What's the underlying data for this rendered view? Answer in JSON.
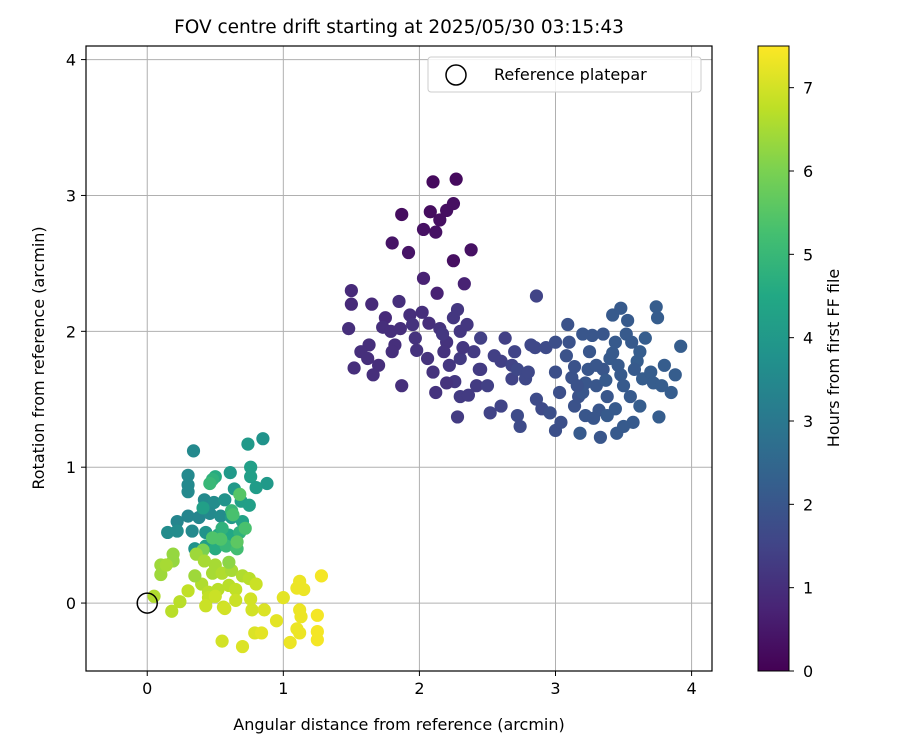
{
  "chart_data": {
    "type": "scatter",
    "title": "FOV centre drift starting at 2025/05/30 03:15:43",
    "xlabel": "Angular distance from reference (arcmin)",
    "ylabel": "Rotation from reference (arcmin)",
    "xlim": [
      -0.45,
      4.15
    ],
    "ylim": [
      -0.5,
      4.1
    ],
    "xticks": [
      0,
      1,
      2,
      3,
      4
    ],
    "yticks": [
      0,
      1,
      2,
      3,
      4
    ],
    "grid": true,
    "legend": {
      "placement": "top-right",
      "entries": [
        "Reference platepar"
      ]
    },
    "reference_point": {
      "label": "Reference platepar",
      "x": 0,
      "y": 0
    },
    "colorbar": {
      "label": "Hours from first FF file",
      "colormap": "viridis",
      "range": [
        0,
        7.5
      ],
      "ticks": [
        0,
        1,
        2,
        3,
        4,
        5,
        6,
        7
      ]
    },
    "points": [
      [
        2.1,
        3.1,
        0.2
      ],
      [
        2.27,
        3.12,
        0.2
      ],
      [
        2.08,
        2.88,
        0.25
      ],
      [
        2.2,
        2.89,
        0.3
      ],
      [
        2.25,
        2.94,
        0.3
      ],
      [
        2.15,
        2.82,
        0.3
      ],
      [
        1.87,
        2.86,
        0.25
      ],
      [
        2.03,
        2.75,
        0.35
      ],
      [
        2.12,
        2.73,
        0.35
      ],
      [
        1.8,
        2.65,
        0.4
      ],
      [
        1.92,
        2.58,
        0.4
      ],
      [
        2.25,
        2.52,
        0.3
      ],
      [
        2.38,
        2.6,
        0.35
      ],
      [
        2.03,
        2.39,
        0.7
      ],
      [
        2.13,
        2.28,
        0.7
      ],
      [
        2.33,
        2.35,
        0.7
      ],
      [
        1.5,
        2.3,
        0.9
      ],
      [
        1.5,
        2.2,
        0.9
      ],
      [
        1.65,
        2.2,
        0.9
      ],
      [
        1.75,
        2.1,
        0.9
      ],
      [
        1.85,
        2.22,
        1.0
      ],
      [
        1.73,
        2.03,
        1.0
      ],
      [
        1.93,
        2.12,
        1.0
      ],
      [
        2.02,
        2.14,
        1.0
      ],
      [
        2.07,
        2.06,
        1.0
      ],
      [
        1.48,
        2.02,
        1.0
      ],
      [
        1.63,
        1.9,
        1.0
      ],
      [
        1.57,
        1.85,
        1.0
      ],
      [
        1.62,
        1.8,
        1.0
      ],
      [
        1.7,
        1.75,
        1.0
      ],
      [
        1.66,
        1.68,
        1.0
      ],
      [
        1.52,
        1.73,
        1.0
      ],
      [
        1.82,
        1.9,
        1.0
      ],
      [
        1.79,
        2.0,
        1.0
      ],
      [
        1.95,
        2.05,
        1.1
      ],
      [
        1.87,
        1.6,
        1.0
      ],
      [
        1.98,
        1.86,
        1.1
      ],
      [
        2.06,
        1.8,
        1.1
      ],
      [
        2.12,
        1.55,
        1.1
      ],
      [
        2.1,
        1.7,
        1.1
      ],
      [
        2.2,
        1.92,
        1.1
      ],
      [
        2.25,
        2.1,
        1.2
      ],
      [
        2.28,
        2.16,
        1.2
      ],
      [
        2.3,
        2.0,
        1.2
      ],
      [
        2.35,
        2.05,
        1.2
      ],
      [
        2.22,
        1.75,
        1.2
      ],
      [
        2.15,
        2.02,
        1.1
      ],
      [
        2.17,
        1.98,
        1.2
      ],
      [
        2.26,
        1.63,
        1.2
      ],
      [
        2.3,
        1.52,
        1.3
      ],
      [
        2.28,
        1.37,
        1.3
      ],
      [
        2.36,
        1.53,
        1.3
      ],
      [
        2.42,
        1.6,
        1.3
      ],
      [
        2.45,
        1.72,
        1.3
      ],
      [
        2.3,
        1.8,
        1.3
      ],
      [
        2.4,
        1.85,
        1.3
      ],
      [
        2.45,
        1.95,
        1.4
      ],
      [
        2.55,
        1.82,
        1.4
      ],
      [
        2.6,
        1.78,
        1.4
      ],
      [
        2.63,
        1.95,
        1.4
      ],
      [
        2.68,
        1.75,
        1.5
      ],
      [
        2.7,
        1.85,
        1.5
      ],
      [
        2.52,
        1.4,
        1.5
      ],
      [
        2.6,
        1.45,
        1.5
      ],
      [
        2.68,
        1.65,
        1.5
      ],
      [
        2.72,
        1.72,
        1.6
      ],
      [
        2.78,
        1.65,
        1.6
      ],
      [
        2.8,
        1.7,
        1.6
      ],
      [
        2.82,
        1.9,
        1.6
      ],
      [
        2.85,
        1.88,
        1.6
      ],
      [
        2.72,
        1.38,
        1.7
      ],
      [
        2.74,
        1.3,
        1.7
      ],
      [
        2.86,
        1.5,
        1.7
      ],
      [
        2.9,
        1.43,
        1.7
      ],
      [
        2.93,
        1.88,
        1.7
      ],
      [
        2.96,
        1.4,
        1.8
      ],
      [
        2.86,
        2.26,
        1.5
      ],
      [
        3.0,
        1.92,
        1.8
      ],
      [
        3.0,
        1.7,
        1.8
      ],
      [
        3.0,
        1.27,
        1.8
      ],
      [
        3.04,
        1.33,
        1.8
      ],
      [
        3.08,
        1.82,
        1.9
      ],
      [
        3.09,
        2.05,
        1.9
      ],
      [
        3.12,
        1.66,
        1.9
      ],
      [
        3.14,
        1.45,
        1.9
      ],
      [
        3.17,
        1.52,
        1.9
      ],
      [
        3.2,
        1.55,
        2.0
      ],
      [
        3.22,
        1.62,
        2.0
      ],
      [
        3.24,
        1.72,
        2.0
      ],
      [
        3.25,
        1.85,
        2.0
      ],
      [
        3.27,
        1.97,
        2.0
      ],
      [
        3.3,
        1.6,
        2.0
      ],
      [
        3.32,
        1.42,
        2.0
      ],
      [
        3.33,
        1.22,
        2.0
      ],
      [
        3.35,
        1.72,
        2.0
      ],
      [
        3.37,
        1.64,
        2.1
      ],
      [
        3.4,
        1.8,
        2.1
      ],
      [
        3.42,
        1.84,
        2.1
      ],
      [
        3.44,
        1.92,
        2.1
      ],
      [
        3.46,
        1.75,
        2.1
      ],
      [
        3.48,
        1.68,
        2.1
      ],
      [
        3.5,
        1.6,
        2.1
      ],
      [
        3.52,
        1.98,
        2.1
      ],
      [
        3.53,
        2.08,
        2.1
      ],
      [
        3.55,
        1.52,
        2.1
      ],
      [
        3.57,
        1.33,
        2.1
      ],
      [
        3.6,
        1.78,
        2.2
      ],
      [
        3.62,
        1.85,
        2.2
      ],
      [
        3.64,
        1.65,
        2.2
      ],
      [
        3.66,
        1.95,
        2.2
      ],
      [
        3.7,
        1.7,
        2.2
      ],
      [
        3.72,
        1.62,
        2.2
      ],
      [
        3.75,
        2.1,
        2.2
      ],
      [
        3.74,
        2.18,
        2.2
      ],
      [
        3.78,
        1.6,
        2.2
      ],
      [
        3.8,
        1.75,
        2.2
      ],
      [
        3.85,
        1.55,
        2.2
      ],
      [
        3.88,
        1.68,
        2.2
      ],
      [
        3.92,
        1.89,
        2.2
      ],
      [
        3.76,
        1.37,
        2.2
      ],
      [
        3.18,
        1.25,
        2.1
      ],
      [
        3.45,
        1.25,
        2.1
      ],
      [
        3.5,
        1.3,
        2.1
      ],
      [
        3.22,
        1.38,
        2.0
      ],
      [
        3.28,
        1.36,
        2.0
      ],
      [
        3.38,
        1.38,
        2.1
      ],
      [
        3.14,
        1.74,
        1.9
      ],
      [
        3.1,
        1.92,
        1.9
      ],
      [
        3.2,
        1.98,
        2.0
      ],
      [
        3.35,
        1.98,
        2.0
      ],
      [
        3.42,
        2.12,
        2.1
      ],
      [
        3.48,
        2.17,
        2.1
      ],
      [
        3.56,
        1.92,
        2.1
      ],
      [
        3.58,
        1.72,
        2.1
      ],
      [
        2.44,
        1.72,
        1.3
      ],
      [
        2.18,
        1.85,
        1.1
      ],
      [
        2.2,
        1.62,
        1.1
      ],
      [
        1.97,
        1.95,
        1.1
      ],
      [
        1.86,
        2.02,
        1.0
      ],
      [
        1.8,
        1.85,
        1.0
      ],
      [
        2.32,
        1.88,
        1.2
      ],
      [
        2.5,
        1.6,
        1.4
      ],
      [
        3.03,
        1.55,
        1.8
      ],
      [
        3.16,
        1.6,
        1.9
      ],
      [
        3.3,
        1.75,
        2.0
      ],
      [
        3.38,
        1.52,
        2.0
      ],
      [
        3.44,
        1.43,
        2.1
      ],
      [
        3.62,
        1.45,
        2.2
      ],
      [
        0.34,
        1.12,
        3.5
      ],
      [
        0.85,
        1.21,
        3.8
      ],
      [
        0.74,
        1.17,
        4.0
      ],
      [
        0.3,
        0.94,
        3.5
      ],
      [
        0.3,
        0.87,
        3.5
      ],
      [
        0.3,
        0.82,
        3.5
      ],
      [
        0.61,
        0.96,
        4.0
      ],
      [
        0.5,
        0.93,
        4.6
      ],
      [
        0.48,
        0.91,
        4.8
      ],
      [
        0.46,
        0.88,
        5.0
      ],
      [
        0.76,
        1.0,
        4.2
      ],
      [
        0.76,
        0.93,
        4.2
      ],
      [
        0.88,
        0.88,
        4.0
      ],
      [
        0.8,
        0.85,
        4.1
      ],
      [
        0.64,
        0.84,
        4.0
      ],
      [
        0.42,
        0.76,
        3.5
      ],
      [
        0.49,
        0.74,
        3.6
      ],
      [
        0.57,
        0.76,
        3.8
      ],
      [
        0.69,
        0.75,
        4.2
      ],
      [
        0.75,
        0.72,
        4.2
      ],
      [
        0.3,
        0.64,
        3.4
      ],
      [
        0.38,
        0.63,
        3.4
      ],
      [
        0.46,
        0.66,
        3.5
      ],
      [
        0.54,
        0.64,
        3.6
      ],
      [
        0.62,
        0.63,
        4.0
      ],
      [
        0.7,
        0.6,
        4.3
      ],
      [
        0.22,
        0.6,
        3.4
      ],
      [
        0.15,
        0.52,
        3.6
      ],
      [
        0.22,
        0.53,
        3.6
      ],
      [
        0.33,
        0.53,
        3.5
      ],
      [
        0.43,
        0.52,
        3.8
      ],
      [
        0.52,
        0.5,
        4.4
      ],
      [
        0.6,
        0.5,
        4.5
      ],
      [
        0.68,
        0.52,
        4.8
      ],
      [
        0.35,
        0.4,
        3.8
      ],
      [
        0.43,
        0.42,
        4.2
      ],
      [
        0.5,
        0.4,
        4.6
      ],
      [
        0.58,
        0.42,
        5.0
      ],
      [
        0.66,
        0.4,
        5.2
      ],
      [
        0.41,
        0.7,
        4.2
      ],
      [
        0.55,
        0.55,
        4.8
      ],
      [
        0.62,
        0.68,
        5.0
      ],
      [
        0.72,
        0.55,
        5.3
      ],
      [
        0.68,
        0.8,
        5.5
      ],
      [
        0.63,
        0.65,
        5.3
      ],
      [
        0.54,
        0.47,
        5.4
      ],
      [
        0.41,
        0.39,
        6.0
      ],
      [
        0.19,
        0.36,
        6.3
      ],
      [
        0.19,
        0.31,
        6.3
      ],
      [
        0.1,
        0.28,
        6.4
      ],
      [
        0.1,
        0.21,
        6.4
      ],
      [
        0.14,
        0.28,
        6.5
      ],
      [
        0.36,
        0.36,
        6.4
      ],
      [
        0.42,
        0.31,
        6.5
      ],
      [
        0.5,
        0.28,
        6.5
      ],
      [
        0.48,
        0.22,
        6.5
      ],
      [
        0.55,
        0.22,
        6.6
      ],
      [
        0.62,
        0.24,
        6.5
      ],
      [
        0.7,
        0.2,
        6.6
      ],
      [
        0.75,
        0.18,
        6.7
      ],
      [
        0.4,
        0.14,
        6.6
      ],
      [
        0.45,
        0.08,
        6.7
      ],
      [
        0.52,
        0.1,
        6.7
      ],
      [
        0.6,
        0.13,
        6.7
      ],
      [
        0.65,
        0.1,
        6.8
      ],
      [
        0.3,
        0.09,
        6.8
      ],
      [
        0.05,
        0.05,
        6.6
      ],
      [
        0.18,
        -0.06,
        6.7
      ],
      [
        0.24,
        0.01,
        6.7
      ],
      [
        0.45,
        0.04,
        6.8
      ],
      [
        0.5,
        0.05,
        6.9
      ],
      [
        0.56,
        -0.03,
        6.9
      ],
      [
        0.65,
        0.02,
        6.9
      ],
      [
        0.8,
        0.14,
        6.9
      ],
      [
        0.77,
        -0.05,
        7.0
      ],
      [
        0.76,
        0.03,
        7.0
      ],
      [
        0.55,
        -0.28,
        7.0
      ],
      [
        0.57,
        -0.04,
        7.0
      ],
      [
        0.43,
        -0.02,
        6.9
      ],
      [
        0.7,
        -0.32,
        7.1
      ],
      [
        0.79,
        -0.22,
        7.1
      ],
      [
        0.84,
        -0.22,
        7.2
      ],
      [
        0.86,
        -0.05,
        7.1
      ],
      [
        0.95,
        -0.13,
        7.2
      ],
      [
        1.05,
        -0.29,
        7.3
      ],
      [
        1.1,
        -0.19,
        7.3
      ],
      [
        1.0,
        0.04,
        7.2
      ],
      [
        1.12,
        0.16,
        7.3
      ],
      [
        1.1,
        0.11,
        7.3
      ],
      [
        1.15,
        0.1,
        7.3
      ],
      [
        1.12,
        -0.05,
        7.3
      ],
      [
        1.13,
        -0.1,
        7.3
      ],
      [
        1.12,
        -0.22,
        7.3
      ],
      [
        1.25,
        -0.21,
        7.4
      ],
      [
        1.25,
        -0.27,
        7.4
      ],
      [
        1.25,
        -0.09,
        7.4
      ],
      [
        1.28,
        0.2,
        7.4
      ],
      [
        0.6,
        0.3,
        6.2
      ],
      [
        0.35,
        0.2,
        6.4
      ],
      [
        0.66,
        0.45,
        5.6
      ],
      [
        0.48,
        0.48,
        5.4
      ]
    ]
  }
}
